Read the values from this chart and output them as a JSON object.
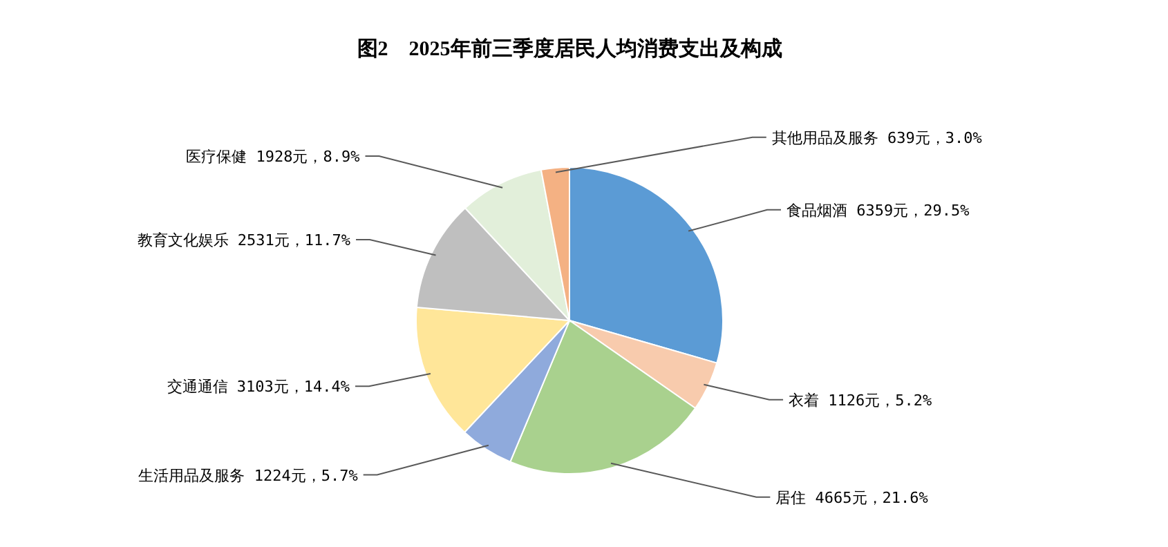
{
  "chart_data": {
    "type": "pie",
    "title": "图2　2025年前三季度居民人均消费支出及构成",
    "categories": [
      "食品烟酒",
      "衣着",
      "居住",
      "生活用品及服务",
      "交通通信",
      "教育文化娱乐",
      "医疗保健",
      "其他用品及服务"
    ],
    "values": [
      6359,
      1126,
      4665,
      1224,
      3103,
      2531,
      1928,
      639
    ],
    "value_labels": [
      "6359元，29.5%",
      "1126元，5.2%",
      "4665元，21.6%",
      "1224元，5.7%",
      "3103元，14.4%",
      "2531元，11.7%",
      "1928元，8.9%",
      "639元，3.0%"
    ],
    "colors": [
      "#5b9bd5",
      "#f8cbad",
      "#a9d18e",
      "#8faadc",
      "#ffe699",
      "#bfbfbf",
      "#e2efda",
      "#f4b183"
    ]
  }
}
